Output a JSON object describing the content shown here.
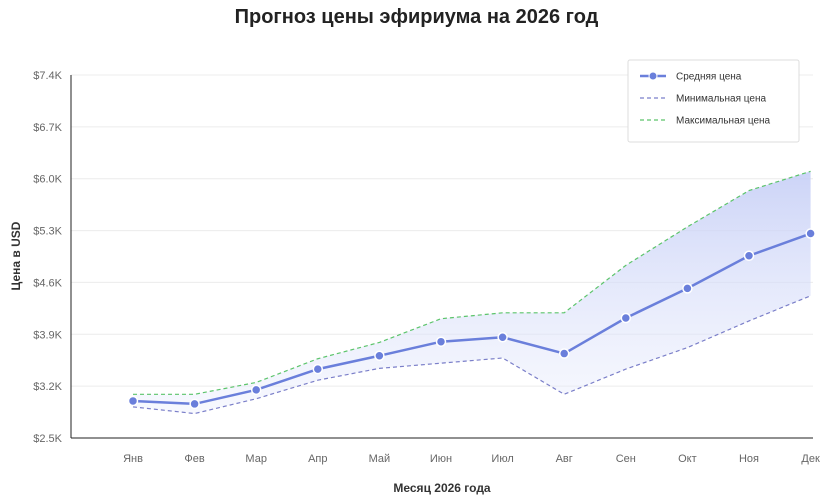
{
  "chart_data": {
    "type": "line",
    "title": "Прогноз цены эфириума на 2026 год",
    "xlabel": "Месяц 2026 года",
    "ylabel": "Цена в USD",
    "categories": [
      "Янв",
      "Фев",
      "Мар",
      "Апр",
      "Май",
      "Июн",
      "Июл",
      "Авг",
      "Сен",
      "Окт",
      "Ноя",
      "Дек"
    ],
    "yticks": [
      "$2.5K",
      "$3.2K",
      "$3.9K",
      "$4.6K",
      "$5.3K",
      "$6.0K",
      "$6.7K",
      "$7.4K"
    ],
    "ylim": [
      2500,
      7400
    ],
    "grid": true,
    "legend_position": "top-right",
    "series": [
      {
        "name": "Средняя цена",
        "style": "solid",
        "color": "#6a7fdb",
        "values": [
          3000,
          2960,
          3150,
          3430,
          3610,
          3800,
          3860,
          3640,
          4120,
          4520,
          4960,
          5260
        ]
      },
      {
        "name": "Минимальная цена",
        "style": "dashed",
        "color": "#7b7fc9",
        "values": [
          2920,
          2830,
          3030,
          3280,
          3440,
          3510,
          3580,
          3090,
          3430,
          3720,
          4080,
          4420
        ]
      },
      {
        "name": "Максимальная цена",
        "style": "dashed",
        "color": "#5cc46b",
        "values": [
          3090,
          3090,
          3250,
          3570,
          3790,
          4110,
          4190,
          4190,
          4830,
          5350,
          5840,
          6100
        ]
      }
    ],
    "band_fill": "#c9d1f7"
  }
}
